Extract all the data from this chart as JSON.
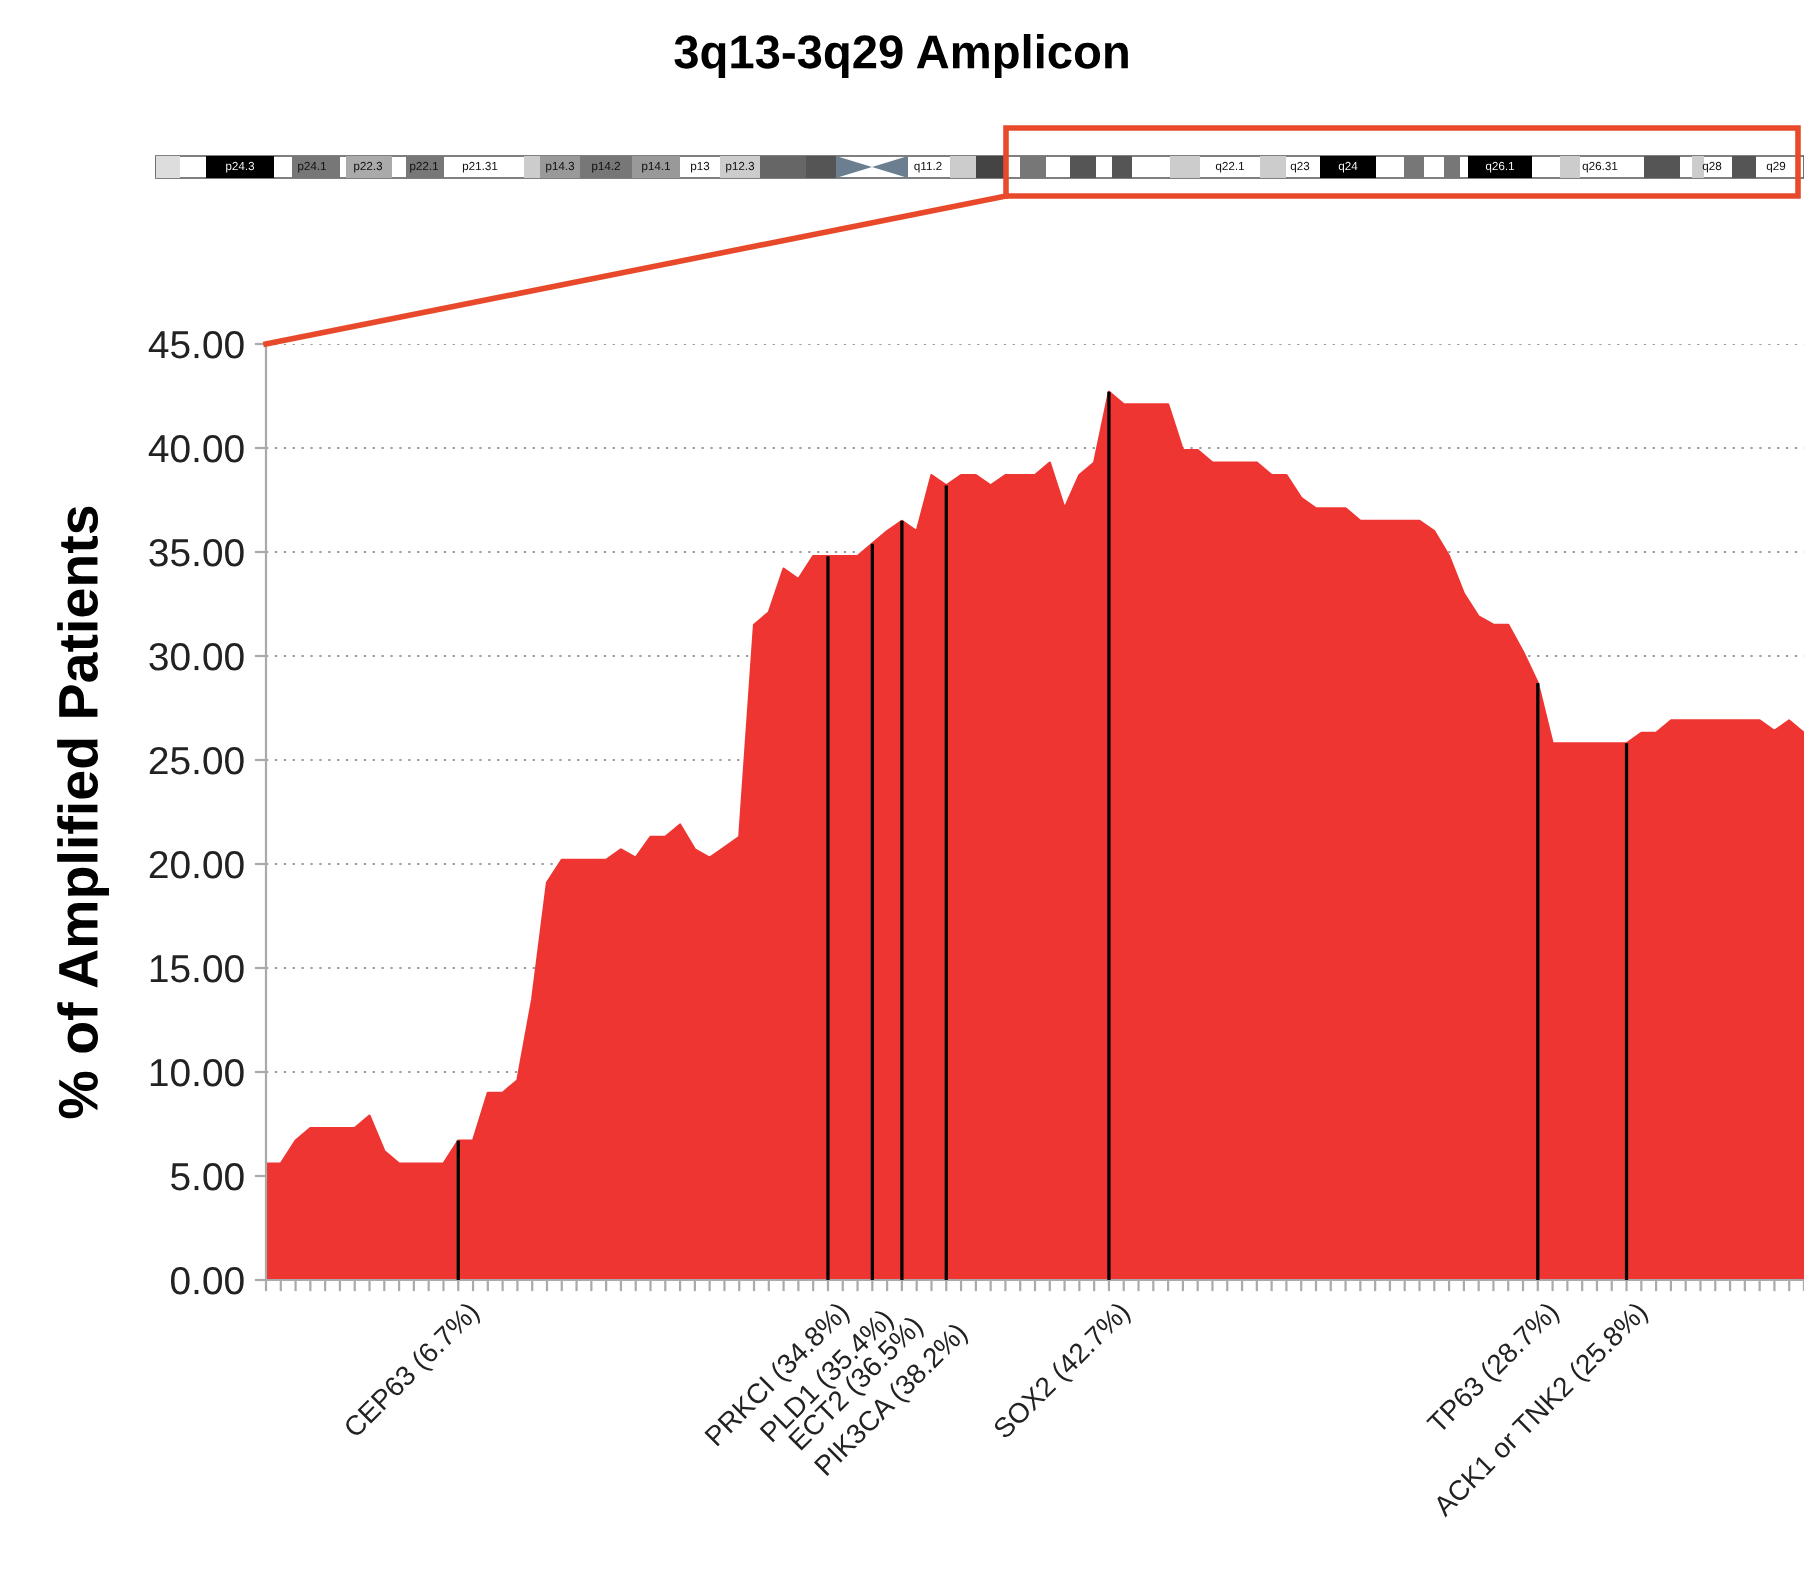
{
  "chart_data": {
    "type": "area",
    "title": "3q13-3q29 Amplicon",
    "ylabel": "% of Amplified Patients",
    "categories": [
      null,
      null,
      null,
      null,
      null,
      null,
      null,
      null,
      null,
      null,
      null,
      null,
      null,
      null,
      null,
      null,
      null,
      null,
      null,
      null,
      null,
      null,
      null,
      null,
      null,
      null,
      null,
      null,
      null,
      null,
      null,
      null,
      null,
      null,
      null,
      null,
      null,
      null,
      null,
      null,
      null,
      null,
      null,
      null,
      null,
      null,
      null,
      null,
      null,
      null,
      null,
      null,
      null,
      null,
      null,
      null,
      null,
      null,
      null,
      null,
      null,
      null,
      null,
      null,
      null,
      null,
      null,
      null,
      null,
      null,
      null,
      null,
      null,
      null,
      null,
      null,
      null,
      null,
      null,
      null,
      null,
      null,
      null,
      null,
      null,
      null,
      null,
      null,
      null,
      null,
      null,
      null,
      null,
      null,
      null,
      null,
      null,
      null,
      null,
      null,
      null,
      null,
      null,
      null,
      null
    ],
    "series": [
      {
        "color": "#ee3531",
        "values": [
          5.6,
          5.6,
          6.7,
          7.3,
          7.3,
          7.3,
          7.3,
          7.9,
          6.2,
          5.6,
          5.6,
          5.6,
          5.6,
          6.7,
          6.7,
          9.0,
          9.0,
          9.6,
          13.5,
          19.1,
          20.2,
          20.2,
          20.2,
          20.2,
          20.7,
          20.3,
          21.3,
          21.3,
          21.9,
          20.7,
          20.3,
          20.8,
          21.3,
          31.5,
          32.1,
          34.2,
          33.7,
          34.8,
          34.8,
          34.8,
          34.8,
          35.4,
          36.0,
          36.5,
          36.0,
          38.7,
          38.2,
          38.7,
          38.7,
          38.2,
          38.7,
          38.7,
          38.7,
          39.3,
          37.1,
          38.7,
          39.3,
          42.7,
          42.1,
          42.1,
          42.1,
          42.1,
          39.9,
          39.9,
          39.3,
          39.3,
          39.3,
          39.3,
          38.7,
          38.7,
          37.6,
          37.1,
          37.1,
          37.1,
          36.5,
          36.5,
          36.5,
          36.5,
          36.5,
          36.0,
          34.8,
          33.0,
          31.9,
          31.5,
          31.5,
          30.2,
          28.7,
          25.8,
          25.8,
          25.8,
          25.8,
          25.8,
          25.8,
          26.3,
          26.3,
          26.9,
          26.9,
          26.9,
          26.9,
          26.9,
          26.9,
          26.9,
          26.4,
          26.9,
          26.3
        ]
      },
      {
        "type": "bar",
        "color": "#000000",
        "values": [
          null,
          null,
          null,
          null,
          null,
          null,
          null,
          null,
          null,
          null,
          null,
          null,
          null,
          6.7,
          null,
          null,
          null,
          null,
          null,
          null,
          null,
          null,
          null,
          null,
          null,
          null,
          null,
          null,
          null,
          null,
          null,
          null,
          null,
          null,
          null,
          null,
          null,
          null,
          34.8,
          null,
          null,
          35.4,
          null,
          36.5,
          null,
          null,
          38.2,
          null,
          null,
          null,
          null,
          null,
          null,
          null,
          null,
          null,
          null,
          42.7,
          null,
          null,
          null,
          null,
          null,
          null,
          null,
          null,
          null,
          null,
          null,
          null,
          null,
          null,
          null,
          null,
          null,
          null,
          null,
          null,
          null,
          null,
          null,
          null,
          null,
          null,
          null,
          null,
          28.7,
          null,
          null,
          null,
          null,
          null,
          25.8,
          null,
          null,
          null,
          null,
          null,
          null,
          null,
          null,
          null,
          null,
          null,
          null
        ],
        "value_labels": [
          null,
          null,
          null,
          null,
          null,
          null,
          null,
          null,
          null,
          null,
          null,
          null,
          null,
          "CEP63 (6.7%)",
          null,
          null,
          null,
          null,
          null,
          null,
          null,
          null,
          null,
          null,
          null,
          null,
          null,
          null,
          null,
          null,
          null,
          null,
          null,
          null,
          null,
          null,
          null,
          null,
          "PRKCI (34.8%)",
          null,
          null,
          "PLD1 (35.4%)",
          null,
          "ECT2 (36.5%)",
          null,
          null,
          "PIK3CA (38.2%)",
          null,
          null,
          null,
          null,
          null,
          null,
          null,
          null,
          null,
          null,
          "SOX2 (42.7%)",
          null,
          null,
          null,
          null,
          null,
          null,
          null,
          null,
          null,
          null,
          null,
          null,
          null,
          null,
          null,
          null,
          null,
          null,
          null,
          null,
          null,
          null,
          null,
          null,
          null,
          null,
          null,
          null,
          "TP63 (28.7%)",
          null,
          null,
          null,
          null,
          null,
          "ACK1 or TNK2 (25.8%)",
          null,
          null,
          null,
          null,
          null,
          null,
          null,
          null,
          null,
          null,
          null,
          null
        ]
      }
    ],
    "ylim": [
      0,
      45
    ],
    "yticks": [
      {
        "value": 0,
        "label": "0.00"
      },
      {
        "value": 5,
        "label": "5.00"
      },
      {
        "value": 10,
        "label": "10.00"
      },
      {
        "value": 15,
        "label": "15.00"
      },
      {
        "value": 20,
        "label": "20.00"
      },
      {
        "value": 25,
        "label": "25.00"
      },
      {
        "value": 30,
        "label": "30.00"
      },
      {
        "value": 35,
        "label": "35.00"
      },
      {
        "value": 40,
        "label": "40.00"
      },
      {
        "value": 45,
        "label": "45.00"
      }
    ],
    "grid": "y",
    "annotations": [
      "p24.3",
      "p24.1",
      "p22.3",
      "p22.1",
      "p21.31",
      "p14.3",
      "p14.2",
      "p14.1",
      "p13",
      "p12.3",
      "q11.2",
      "q22.1",
      "q23",
      "q24",
      "q26.1",
      "q26.31",
      "q28",
      "q29"
    ]
  }
}
